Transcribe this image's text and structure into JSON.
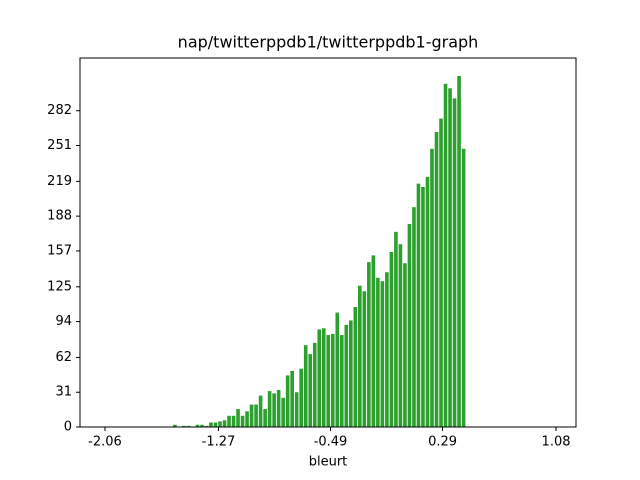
{
  "chart_data": {
    "type": "histogram",
    "title": "nap/twitterppdb1/twitterppdb1-graph",
    "x_label": "bleurt",
    "color": "#2ca02c",
    "bins": [
      -1.589,
      -1.5576,
      -1.5262,
      -1.4948,
      -1.4634,
      -1.432,
      -1.4006,
      -1.3692,
      -1.3378,
      -1.3064,
      -1.275,
      -1.2436,
      -1.2122,
      -1.1808,
      -1.1494,
      -1.118,
      -1.0866,
      -1.0552,
      -1.0238,
      -0.9924,
      -0.961,
      -0.9296,
      -0.8982,
      -0.8668,
      -0.8354,
      -0.804,
      -0.7726,
      -0.7412,
      -0.7098,
      -0.6784,
      -0.647,
      -0.6156,
      -0.5842,
      -0.5528,
      -0.5214,
      -0.49,
      -0.4586,
      -0.4272,
      -0.3958,
      -0.3644,
      -0.333,
      -0.3016,
      -0.2702,
      -0.2388,
      -0.2074,
      -0.176,
      -0.1446,
      -0.1132,
      -0.0818,
      -0.0504,
      -0.019,
      0.0124,
      0.0438,
      0.0752,
      0.1066,
      0.138,
      0.1694,
      0.2008,
      0.2322,
      0.2636,
      0.295,
      0.3264,
      0.3578,
      0.3892,
      0.4206,
      0.452
    ],
    "values": [
      2,
      0,
      1,
      1,
      0,
      2,
      2,
      1,
      4,
      4,
      5,
      6,
      10,
      10,
      16,
      10,
      14,
      20,
      20,
      28,
      16,
      32,
      30,
      33,
      26,
      46,
      50,
      31,
      52,
      73,
      65,
      75,
      87,
      88,
      82,
      83,
      102,
      82,
      91,
      95,
      107,
      126,
      121,
      147,
      153,
      133,
      130,
      138,
      156,
      174,
      163,
      146,
      181,
      196,
      217,
      214,
      223,
      248,
      263,
      275,
      306,
      302,
      293,
      313,
      248
    ],
    "xlim": [
      -2.234,
      1.219
    ],
    "ylim": [
      0,
      329
    ],
    "xticks": [
      -2.06,
      -1.27,
      -0.49,
      0.29,
      1.08
    ],
    "yticks": [
      0,
      31,
      62,
      94,
      125,
      157,
      188,
      219,
      251,
      282
    ]
  }
}
